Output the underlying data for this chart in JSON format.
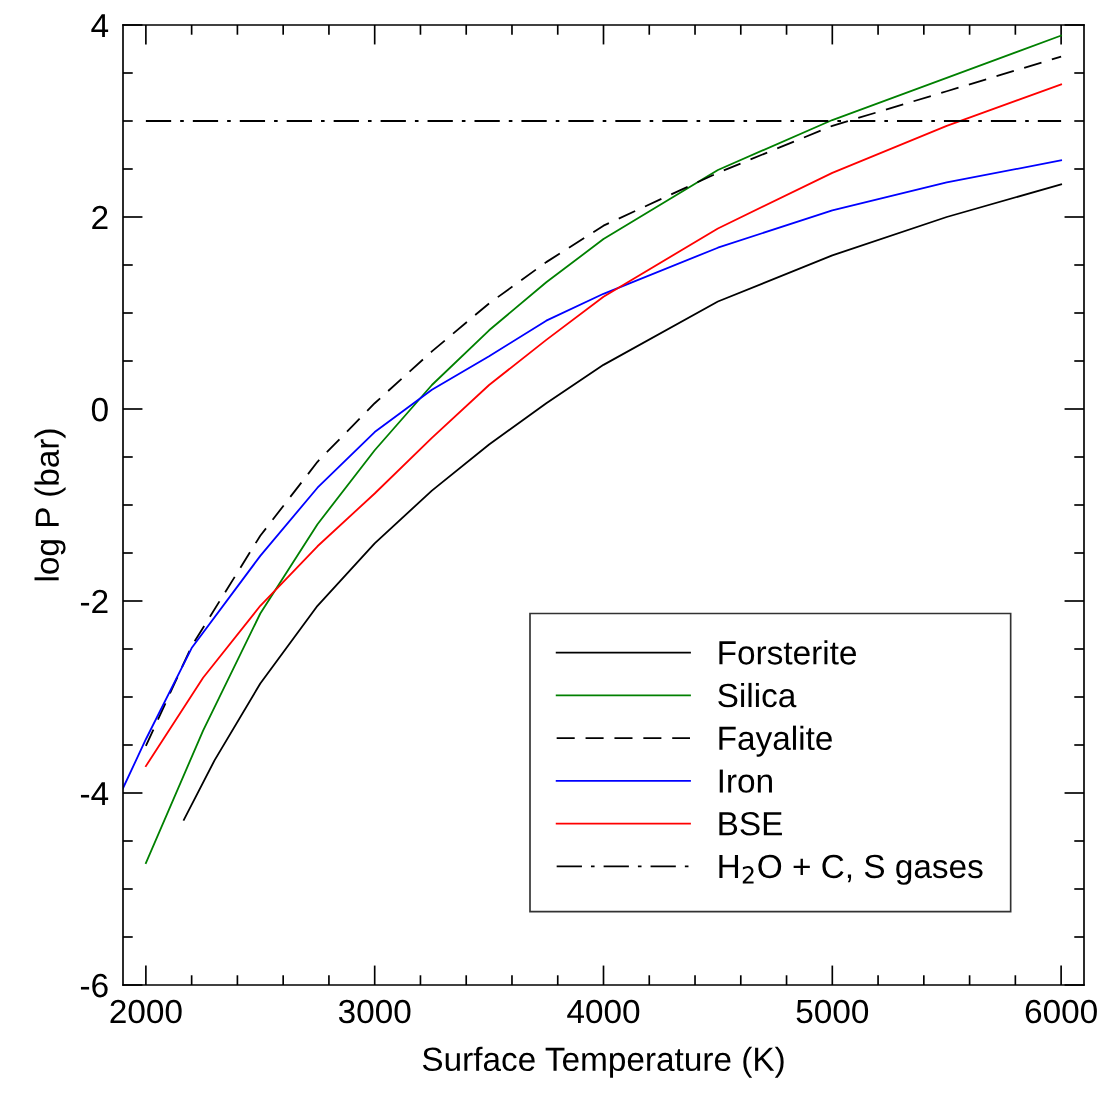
{
  "chart_data": {
    "type": "line",
    "xlabel": "Surface Temperature (K)",
    "ylabel": "log P (bar)",
    "xlim": [
      1900,
      6100
    ],
    "xticks": [
      2000,
      3000,
      4000,
      5000,
      6000
    ],
    "ylim": [
      -6,
      4
    ],
    "yticks": [
      -6,
      -4,
      -2,
      0,
      2,
      4
    ],
    "grid": false,
    "legend": "bottom right",
    "marker": "none",
    "series": [
      {
        "name": "Forsterite",
        "color": "#000000",
        "line_style": "solid",
        "x": [
          2166,
          2300,
          2500,
          2750,
          3000,
          3250,
          3500,
          3750,
          4000,
          4500,
          5000,
          5500,
          6000
        ],
        "values": [
          -4.28,
          -3.66,
          -2.86,
          -2.05,
          -1.4,
          -0.85,
          -0.37,
          0.06,
          0.46,
          1.12,
          1.6,
          2.0,
          2.34
        ]
      },
      {
        "name": "Silica",
        "color": "#008000",
        "line_style": "solid",
        "x": [
          2000,
          2250,
          2500,
          2750,
          3000,
          3250,
          3500,
          3750,
          4000,
          4500,
          5000,
          5500,
          6000
        ],
        "values": [
          -4.73,
          -3.35,
          -2.13,
          -1.2,
          -0.43,
          0.25,
          0.82,
          1.32,
          1.77,
          2.49,
          3.01,
          3.45,
          3.89
        ]
      },
      {
        "name": "Fayalite",
        "color": "#000000",
        "line_style": "dashed",
        "x": [
          2000,
          2200,
          2500,
          2750,
          3000,
          3250,
          3500,
          3750,
          4000,
          4500,
          5000,
          5500,
          6000
        ],
        "values": [
          -3.51,
          -2.47,
          -1.32,
          -0.55,
          0.06,
          0.6,
          1.1,
          1.53,
          1.91,
          2.46,
          2.95,
          3.31,
          3.67
        ]
      },
      {
        "name": "Iron",
        "color": "#0000ff",
        "line_style": "solid",
        "x": [
          1900,
          2000,
          2200,
          2500,
          2750,
          3000,
          3250,
          3500,
          3750,
          4000,
          4500,
          5000,
          5500,
          6000
        ],
        "values": [
          -3.95,
          -3.44,
          -2.49,
          -1.53,
          -0.82,
          -0.24,
          0.2,
          0.55,
          0.92,
          1.2,
          1.68,
          2.07,
          2.36,
          2.59
        ]
      },
      {
        "name": "BSE",
        "color": "#ff0000",
        "line_style": "solid",
        "x": [
          2000,
          2250,
          2500,
          2750,
          3000,
          3250,
          3500,
          3750,
          4000,
          4500,
          5000,
          5500,
          6000
        ],
        "values": [
          -3.72,
          -2.8,
          -2.05,
          -1.43,
          -0.88,
          -0.3,
          0.25,
          0.72,
          1.17,
          1.88,
          2.46,
          2.95,
          3.38
        ]
      },
      {
        "name": "H$_{2}$O + C, S gases",
        "color": "#000000",
        "line_style": "dashdot",
        "x": [
          2000,
          6000
        ],
        "values": [
          3,
          3
        ]
      }
    ]
  }
}
